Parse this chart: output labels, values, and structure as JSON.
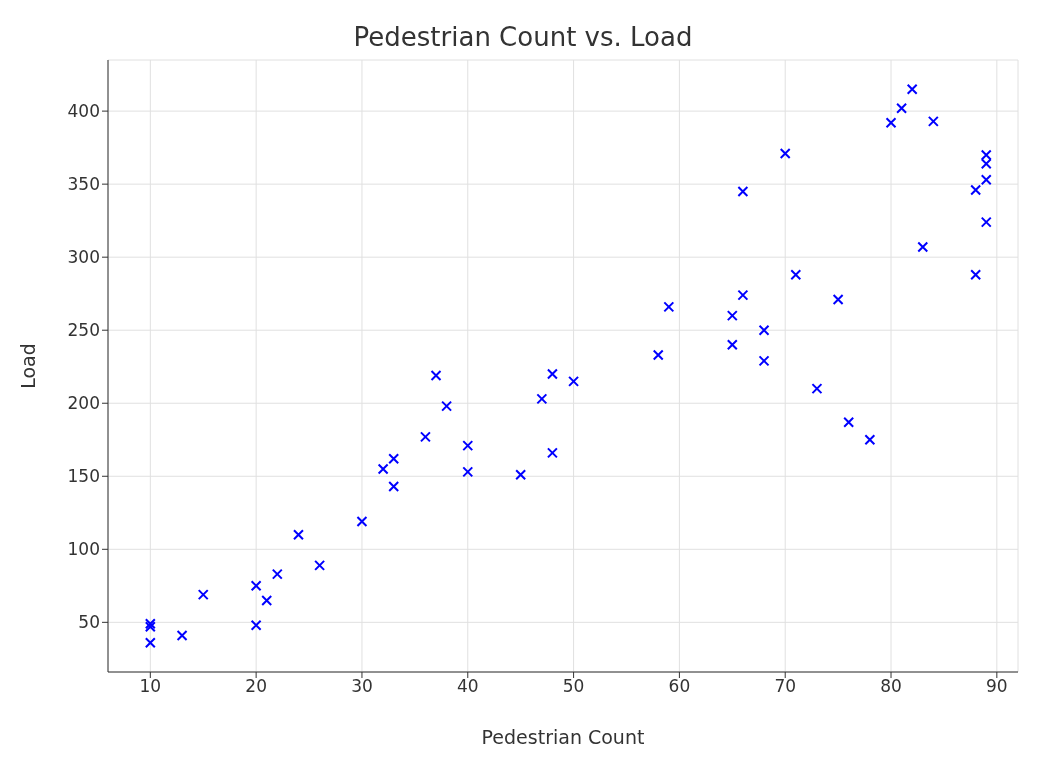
{
  "chart_data": {
    "type": "scatter",
    "title": "Pedestrian Count vs. Load",
    "xlabel": "Pedestrian Count",
    "ylabel": "Load",
    "x": [
      10,
      10,
      10,
      13,
      15,
      20,
      20,
      21,
      22,
      24,
      26,
      30,
      32,
      33,
      33,
      36,
      37,
      38,
      40,
      40,
      45,
      47,
      48,
      48,
      50,
      58,
      59,
      65,
      65,
      66,
      66,
      68,
      68,
      70,
      71,
      73,
      75,
      76,
      78,
      80,
      81,
      82,
      83,
      84,
      88,
      88,
      89,
      89,
      89,
      89
    ],
    "series": [
      {
        "color": "#0000ff",
        "values": [
          49,
          47,
          36,
          41,
          69,
          75,
          48,
          65,
          83,
          110,
          89,
          119,
          155,
          162,
          143,
          177,
          219,
          198,
          171,
          153,
          151,
          203,
          220,
          166,
          215,
          233,
          266,
          260,
          240,
          345,
          274,
          250,
          229,
          371,
          288,
          210,
          271,
          187,
          175,
          392,
          402,
          415,
          307,
          393,
          346,
          288,
          370,
          364,
          353,
          324
        ]
      }
    ],
    "xlim": [
      6,
      92
    ],
    "xticks": [
      10,
      20,
      30,
      40,
      50,
      60,
      70,
      80,
      90
    ],
    "ylim": [
      16,
      435
    ],
    "yticks": [
      50,
      100,
      150,
      200,
      250,
      300,
      350,
      400
    ],
    "grid": true,
    "marker": "cross"
  }
}
